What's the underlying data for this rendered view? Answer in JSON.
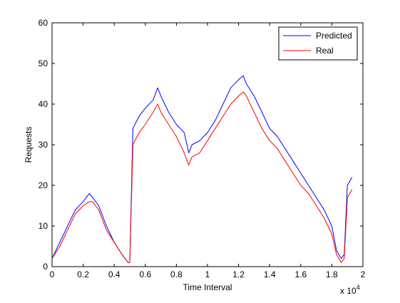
{
  "chart_data": {
    "type": "line",
    "xlabel": "Time Interval",
    "ylabel": "Requests",
    "x_multiplier_label": "x 10",
    "x_multiplier_exp": "4",
    "xlim": [
      0,
      20000
    ],
    "ylim": [
      0,
      60
    ],
    "xticks": [
      0,
      2000,
      4000,
      6000,
      8000,
      10000,
      12000,
      14000,
      16000,
      18000,
      20000
    ],
    "xtick_labels": [
      "0",
      "0.2",
      "0.4",
      "0.6",
      "0.8",
      "1",
      "1.2",
      "1.4",
      "1.6",
      "1.8",
      "2"
    ],
    "yticks": [
      0,
      10,
      20,
      30,
      40,
      50,
      60
    ],
    "ytick_labels": [
      "0",
      "10",
      "20",
      "30",
      "40",
      "50",
      "60"
    ],
    "legend": {
      "placement": "top-right"
    },
    "series": [
      {
        "name": "Predicted",
        "color": "#0000ff",
        "x": [
          0,
          500,
          1000,
          1500,
          2000,
          2400,
          2600,
          3000,
          3500,
          4000,
          4500,
          4900,
          5000,
          5200,
          5600,
          6000,
          6500,
          6800,
          7000,
          7500,
          8000,
          8500,
          8800,
          9000,
          9500,
          10000,
          10500,
          11000,
          11500,
          12000,
          12300,
          12500,
          13000,
          13500,
          14000,
          14500,
          15000,
          15500,
          16000,
          16500,
          17000,
          17500,
          18000,
          18300,
          18600,
          18800,
          19000,
          19300
        ],
        "values": [
          2,
          6,
          10,
          14,
          16,
          18,
          17,
          15,
          10,
          6,
          3,
          1,
          1,
          34,
          37,
          39,
          41,
          44,
          42,
          38,
          35,
          33,
          28,
          30,
          31,
          33,
          36,
          40,
          44,
          46,
          47,
          45,
          42,
          38,
          34,
          32,
          29,
          26,
          23,
          20,
          17,
          14,
          10,
          4,
          2,
          3,
          20,
          22
        ]
      },
      {
        "name": "Real",
        "color": "#ff0000",
        "x": [
          0,
          500,
          1000,
          1500,
          2000,
          2400,
          2600,
          3000,
          3500,
          4000,
          4500,
          4900,
          5000,
          5200,
          5600,
          6000,
          6500,
          6800,
          7000,
          7500,
          8000,
          8500,
          8800,
          9000,
          9500,
          10000,
          10500,
          11000,
          11500,
          12000,
          12300,
          12500,
          13000,
          13500,
          14000,
          14500,
          15000,
          15500,
          16000,
          16500,
          17000,
          17500,
          18000,
          18300,
          18600,
          18800,
          19000,
          19300
        ],
        "values": [
          2,
          5,
          9,
          13,
          15,
          16,
          16,
          14,
          9,
          6,
          3,
          1,
          1,
          30,
          33,
          35,
          38,
          40,
          38,
          35,
          32,
          28,
          25,
          27,
          28,
          31,
          34,
          37,
          40,
          42,
          43,
          42,
          38,
          34,
          31,
          29,
          26,
          23,
          20,
          18,
          15,
          12,
          8,
          3,
          1,
          2,
          17,
          19
        ]
      }
    ]
  }
}
